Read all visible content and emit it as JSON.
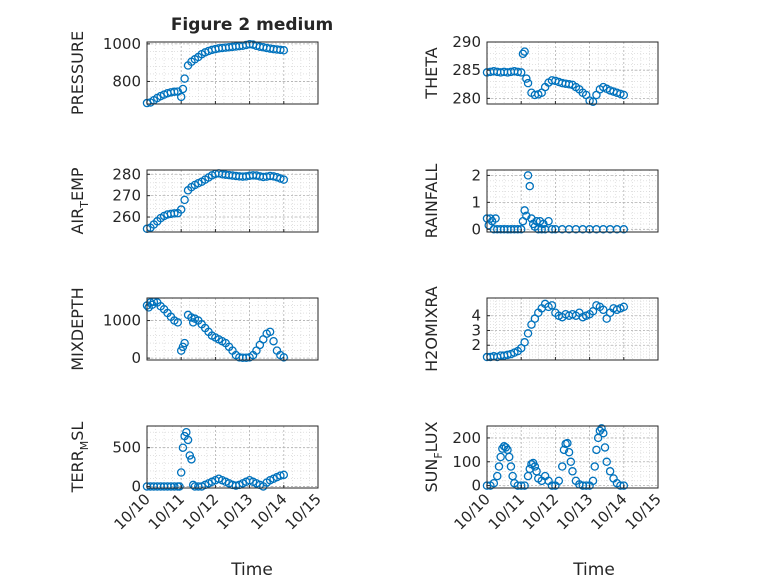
{
  "figure": {
    "title": "Figure 2 medium",
    "xlabel": "Time",
    "xtick_labels": [
      "10/10",
      "10/11",
      "10/12",
      "10/13",
      "10/14",
      "10/15"
    ],
    "marker_color": "#0072BD",
    "axes_color": "#262626",
    "grid_color": "#b0b0b0"
  },
  "chart_data": [
    {
      "type": "scatter",
      "ylabel": "PRESSURE",
      "ylabel_sub": null,
      "xlim": [
        0,
        5
      ],
      "ylim": [
        680,
        1010
      ],
      "yticks": [
        800,
        1000
      ],
      "x": [
        0.0,
        0.1,
        0.2,
        0.3,
        0.4,
        0.5,
        0.6,
        0.7,
        0.8,
        0.9,
        1.0,
        1.05,
        1.1,
        1.2,
        1.3,
        1.4,
        1.5,
        1.6,
        1.7,
        1.8,
        1.9,
        2.0,
        2.1,
        2.2,
        2.3,
        2.4,
        2.5,
        2.6,
        2.7,
        2.8,
        2.9,
        3.0,
        3.1,
        3.2,
        3.3,
        3.4,
        3.5,
        3.6,
        3.7,
        3.8,
        3.9,
        4.0
      ],
      "y": [
        685,
        688,
        700,
        712,
        722,
        730,
        737,
        742,
        745,
        746,
        718,
        760,
        815,
        885,
        905,
        918,
        930,
        945,
        955,
        962,
        968,
        972,
        976,
        978,
        980,
        982,
        984,
        986,
        988,
        990,
        994,
        998,
        996,
        990,
        985,
        982,
        978,
        975,
        972,
        970,
        968,
        966
      ]
    },
    {
      "type": "scatter",
      "ylabel": "THETA",
      "ylabel_sub": null,
      "xlim": [
        0,
        5
      ],
      "ylim": [
        279,
        290
      ],
      "yticks": [
        280,
        285,
        290
      ],
      "x": [
        0.0,
        0.1,
        0.2,
        0.3,
        0.4,
        0.5,
        0.6,
        0.7,
        0.8,
        0.9,
        1.0,
        1.05,
        1.1,
        1.15,
        1.2,
        1.3,
        1.4,
        1.5,
        1.6,
        1.7,
        1.8,
        1.9,
        2.0,
        2.1,
        2.2,
        2.3,
        2.4,
        2.5,
        2.6,
        2.7,
        2.8,
        2.9,
        3.0,
        3.1,
        3.2,
        3.3,
        3.4,
        3.5,
        3.6,
        3.7,
        3.8,
        3.9,
        4.0
      ],
      "y": [
        284.6,
        284.7,
        284.8,
        284.7,
        284.6,
        284.7,
        284.6,
        284.7,
        284.8,
        284.7,
        284.6,
        287.9,
        288.3,
        283.5,
        282.7,
        281.0,
        280.6,
        280.7,
        281.0,
        282.0,
        282.8,
        283.2,
        283.1,
        282.9,
        282.7,
        282.6,
        282.5,
        282.4,
        282.0,
        281.6,
        281.0,
        280.6,
        279.6,
        279.4,
        280.6,
        281.6,
        282.0,
        281.7,
        281.4,
        281.2,
        281.0,
        280.8,
        280.6
      ]
    },
    {
      "type": "scatter",
      "ylabel": "AIR",
      "ylabel_sub": "T",
      "ylabel_suffix": "EMP",
      "xlim": [
        0,
        5
      ],
      "ylim": [
        253,
        282
      ],
      "yticks": [
        260,
        270,
        280
      ],
      "x": [
        0.0,
        0.1,
        0.2,
        0.3,
        0.4,
        0.5,
        0.6,
        0.7,
        0.8,
        0.9,
        1.0,
        1.1,
        1.2,
        1.3,
        1.4,
        1.5,
        1.6,
        1.7,
        1.8,
        1.9,
        2.0,
        2.1,
        2.2,
        2.3,
        2.4,
        2.5,
        2.6,
        2.7,
        2.8,
        2.9,
        3.0,
        3.1,
        3.2,
        3.3,
        3.4,
        3.5,
        3.6,
        3.7,
        3.8,
        3.9,
        4.0
      ],
      "y": [
        254.5,
        255.0,
        256.5,
        258.0,
        259.5,
        260.5,
        261.2,
        261.5,
        261.7,
        261.8,
        263.5,
        268.0,
        272.5,
        274.0,
        275.0,
        275.8,
        276.5,
        277.5,
        278.5,
        279.5,
        280.2,
        280.4,
        280.0,
        279.8,
        279.6,
        279.4,
        279.2,
        279.0,
        278.9,
        279.0,
        279.3,
        279.5,
        279.4,
        279.0,
        278.7,
        278.9,
        279.2,
        279.0,
        278.6,
        278.0,
        277.5
      ]
    },
    {
      "type": "scatter",
      "ylabel": "RAINFALL",
      "ylabel_sub": null,
      "xlim": [
        0,
        5
      ],
      "ylim": [
        -0.1,
        2.2
      ],
      "yticks": [
        0,
        1,
        2
      ],
      "x": [
        0.0,
        0.05,
        0.1,
        0.15,
        0.2,
        0.25,
        0.3,
        0.4,
        0.5,
        0.6,
        0.7,
        0.8,
        0.9,
        1.0,
        1.05,
        1.1,
        1.15,
        1.2,
        1.25,
        1.3,
        1.35,
        1.4,
        1.45,
        1.5,
        1.55,
        1.6,
        1.65,
        1.7,
        1.8,
        1.9,
        2.0,
        2.2,
        2.4,
        2.6,
        2.8,
        3.0,
        3.2,
        3.4,
        3.6,
        3.8,
        4.0
      ],
      "y": [
        0.4,
        0.15,
        0.4,
        0.3,
        0.0,
        0.4,
        0.0,
        0.0,
        0.0,
        0.0,
        0.0,
        0.0,
        0.0,
        0.0,
        0.3,
        0.7,
        0.5,
        2.0,
        1.6,
        0.4,
        0.2,
        0.1,
        0.3,
        0.0,
        0.3,
        0.0,
        0.2,
        0.0,
        0.3,
        0.0,
        0.0,
        0.0,
        0.0,
        0.0,
        0.0,
        0.0,
        0.0,
        0.0,
        0.0,
        0.0,
        0.0
      ]
    },
    {
      "type": "scatter",
      "ylabel": "MIXDEPTH",
      "ylabel_sub": null,
      "xlim": [
        0,
        5
      ],
      "ylim": [
        -50,
        1600
      ],
      "yticks": [
        0,
        1000
      ],
      "x": [
        0.0,
        0.05,
        0.1,
        0.15,
        0.2,
        0.3,
        0.4,
        0.5,
        0.6,
        0.7,
        0.8,
        0.9,
        1.0,
        1.05,
        1.1,
        1.2,
        1.3,
        1.35,
        1.4,
        1.5,
        1.6,
        1.7,
        1.8,
        1.9,
        2.0,
        2.1,
        2.2,
        2.3,
        2.4,
        2.5,
        2.6,
        2.7,
        2.8,
        2.9,
        3.0,
        3.1,
        3.2,
        3.3,
        3.4,
        3.5,
        3.6,
        3.7,
        3.8,
        3.9,
        4.0
      ],
      "y": [
        1400,
        1350,
        1480,
        1420,
        1500,
        1480,
        1380,
        1300,
        1200,
        1100,
        1000,
        950,
        200,
        300,
        400,
        1150,
        1080,
        950,
        1050,
        1000,
        900,
        800,
        700,
        600,
        550,
        500,
        450,
        400,
        300,
        200,
        80,
        20,
        10,
        10,
        20,
        80,
        200,
        350,
        500,
        650,
        700,
        450,
        200,
        80,
        20
      ]
    },
    {
      "type": "scatter",
      "ylabel": "H2OMIXRA",
      "ylabel_sub": null,
      "xlim": [
        0,
        5
      ],
      "ylim": [
        1.0,
        5.2
      ],
      "yticks": [
        2,
        3,
        4
      ],
      "x": [
        0.0,
        0.1,
        0.2,
        0.3,
        0.4,
        0.5,
        0.6,
        0.7,
        0.8,
        0.9,
        1.0,
        1.1,
        1.2,
        1.3,
        1.4,
        1.5,
        1.6,
        1.7,
        1.8,
        1.9,
        2.0,
        2.1,
        2.2,
        2.3,
        2.4,
        2.5,
        2.6,
        2.7,
        2.8,
        2.9,
        3.0,
        3.1,
        3.2,
        3.3,
        3.4,
        3.5,
        3.6,
        3.7,
        3.8,
        3.9,
        4.0
      ],
      "y": [
        1.2,
        1.2,
        1.25,
        1.2,
        1.3,
        1.3,
        1.35,
        1.4,
        1.5,
        1.6,
        1.8,
        2.2,
        2.8,
        3.4,
        3.8,
        4.2,
        4.5,
        4.8,
        4.6,
        4.7,
        4.2,
        4.0,
        3.9,
        4.1,
        4.0,
        4.1,
        4.0,
        4.2,
        3.9,
        4.0,
        4.1,
        4.3,
        4.7,
        4.6,
        4.4,
        3.8,
        4.2,
        4.5,
        4.4,
        4.5,
        4.6
      ]
    },
    {
      "type": "scatter",
      "ylabel": "TERR",
      "ylabel_sub": "M",
      "ylabel_suffix": "SL",
      "xlim": [
        0,
        5
      ],
      "ylim": [
        -20,
        780
      ],
      "yticks": [
        0,
        500
      ],
      "x": [
        0.0,
        0.1,
        0.2,
        0.3,
        0.4,
        0.5,
        0.6,
        0.7,
        0.8,
        0.9,
        0.95,
        1.0,
        1.05,
        1.1,
        1.15,
        1.2,
        1.25,
        1.3,
        1.35,
        1.4,
        1.5,
        1.6,
        1.7,
        1.8,
        1.9,
        2.0,
        2.1,
        2.2,
        2.3,
        2.4,
        2.5,
        2.6,
        2.7,
        2.8,
        2.9,
        3.0,
        3.1,
        3.2,
        3.3,
        3.4,
        3.5,
        3.6,
        3.7,
        3.8,
        3.9,
        4.0
      ],
      "y": [
        0,
        0,
        0,
        0,
        0,
        0,
        0,
        0,
        0,
        0,
        0,
        180,
        500,
        650,
        700,
        600,
        400,
        350,
        20,
        0,
        0,
        0,
        20,
        40,
        60,
        80,
        100,
        80,
        60,
        40,
        20,
        10,
        20,
        40,
        60,
        80,
        60,
        40,
        20,
        0,
        50,
        80,
        100,
        120,
        140,
        150
      ]
    },
    {
      "type": "scatter",
      "ylabel": "SUN",
      "ylabel_sub": "F",
      "ylabel_suffix": "LUX",
      "xlim": [
        0,
        5
      ],
      "ylim": [
        -10,
        250
      ],
      "yticks": [
        0,
        100,
        200
      ],
      "x": [
        0.0,
        0.1,
        0.2,
        0.3,
        0.35,
        0.4,
        0.45,
        0.5,
        0.55,
        0.6,
        0.65,
        0.7,
        0.75,
        0.8,
        0.9,
        1.0,
        1.1,
        1.2,
        1.25,
        1.3,
        1.35,
        1.4,
        1.45,
        1.5,
        1.6,
        1.7,
        1.8,
        1.9,
        2.0,
        2.1,
        2.2,
        2.25,
        2.3,
        2.35,
        2.4,
        2.45,
        2.5,
        2.6,
        2.7,
        2.8,
        2.9,
        3.0,
        3.1,
        3.15,
        3.2,
        3.25,
        3.3,
        3.35,
        3.4,
        3.45,
        3.5,
        3.6,
        3.7,
        3.8,
        3.9,
        4.0
      ],
      "y": [
        0,
        0,
        10,
        40,
        80,
        120,
        155,
        165,
        160,
        150,
        120,
        80,
        40,
        10,
        0,
        0,
        0,
        40,
        70,
        90,
        95,
        80,
        60,
        30,
        20,
        40,
        20,
        0,
        0,
        20,
        80,
        150,
        175,
        178,
        140,
        100,
        60,
        20,
        5,
        0,
        0,
        0,
        20,
        80,
        150,
        200,
        230,
        240,
        220,
        160,
        100,
        60,
        30,
        10,
        0,
        0
      ]
    }
  ]
}
